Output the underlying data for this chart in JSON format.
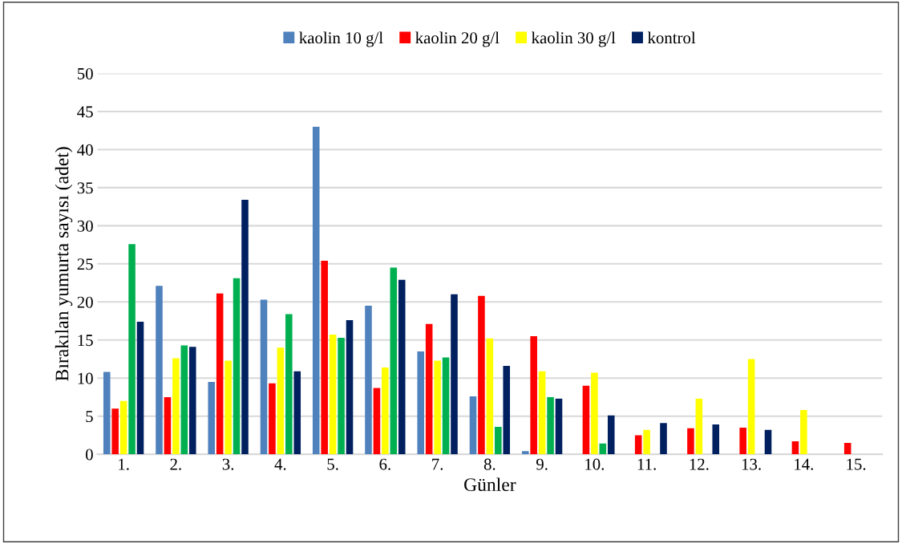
{
  "chart_data": {
    "type": "bar",
    "xlabel": "Günler",
    "ylabel": "Bırakılan yumurta sayısı (adet)",
    "categories": [
      "1.",
      "2.",
      "3.",
      "4.",
      "5.",
      "6.",
      "7.",
      "8.",
      "9.",
      "10.",
      "11.",
      "12.",
      "13.",
      "14.",
      "15."
    ],
    "series": [
      {
        "name": "kaolin 10 g/l",
        "color": "#4f81bd",
        "values": [
          10.8,
          22.1,
          9.5,
          20.3,
          43,
          19.5,
          13.5,
          7.6,
          0.4,
          0,
          0,
          0,
          0,
          0,
          0
        ]
      },
      {
        "name": "kaolin 20 g/l",
        "color": "#ff0000",
        "values": [
          6,
          7.5,
          21.1,
          9.3,
          25.4,
          8.7,
          17.1,
          20.8,
          15.5,
          9,
          2.5,
          3.4,
          3.5,
          1.7,
          1.5
        ]
      },
      {
        "name": "kaolin 30 g/l",
        "color": "#ffff00",
        "values": [
          7,
          12.6,
          12.3,
          14,
          15.7,
          11.4,
          12.3,
          15.2,
          10.9,
          10.7,
          3.2,
          7.3,
          12.5,
          5.8,
          0
        ]
      },
      {
        "color": "#00b050",
        "values": [
          27.6,
          14.3,
          23.1,
          18.4,
          15.3,
          24.5,
          12.7,
          3.6,
          7.5,
          1.4,
          0,
          0,
          0,
          0,
          0
        ]
      },
      {
        "name": "kontrol",
        "color": "#002060",
        "values": [
          17.4,
          14.1,
          33.4,
          10.9,
          17.6,
          22.9,
          21,
          11.6,
          7.3,
          5.1,
          4.1,
          3.9,
          3.2,
          0,
          0
        ]
      }
    ],
    "ylim": [
      0,
      50
    ],
    "yticks": [
      0,
      5,
      10,
      15,
      20,
      25,
      30,
      35,
      40,
      45,
      50
    ],
    "grid": "y",
    "legend": "top"
  }
}
